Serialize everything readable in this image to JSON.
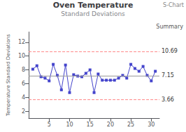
{
  "chart_data": {
    "type": "line",
    "title": "Oven Temperature",
    "subtitle": "Standard Deviations",
    "ylabel": "Temperature Standard Deviations",
    "x": [
      1,
      2,
      3,
      4,
      5,
      6,
      7,
      8,
      9,
      10,
      11,
      12,
      13,
      14,
      15,
      16,
      17,
      18,
      19,
      20,
      21,
      22,
      23,
      24,
      25,
      26,
      27,
      28,
      29,
      30,
      31
    ],
    "values": [
      8.1,
      8.6,
      7.0,
      6.8,
      6.4,
      8.8,
      7.2,
      5.1,
      8.7,
      4.7,
      7.3,
      7.1,
      7.0,
      7.5,
      8.0,
      4.7,
      7.4,
      6.5,
      6.5,
      6.5,
      6.5,
      6.8,
      7.2,
      6.8,
      8.8,
      8.2,
      7.8,
      8.5,
      7.2,
      6.4,
      7.8
    ],
    "color": "#4444cc",
    "marker": "square",
    "xlim": [
      0,
      32
    ],
    "ylim": [
      1,
      13.5
    ],
    "xticks": [
      5,
      10,
      15,
      20,
      25,
      30
    ],
    "yticks": [
      2,
      4,
      6,
      8,
      10,
      12
    ],
    "grid": false,
    "reference_lines": [
      {
        "value": 10.69,
        "label": "10.69",
        "color": "#ff8888",
        "line_style": "dashed"
      },
      {
        "value": 7.15,
        "label": "7.15",
        "color": "#999999",
        "line_style": "solid"
      },
      {
        "value": 3.66,
        "label": "3.66",
        "color": "#ff8888",
        "line_style": "dashed"
      }
    ],
    "annotations": [
      "Summary",
      "S-Chart"
    ]
  }
}
